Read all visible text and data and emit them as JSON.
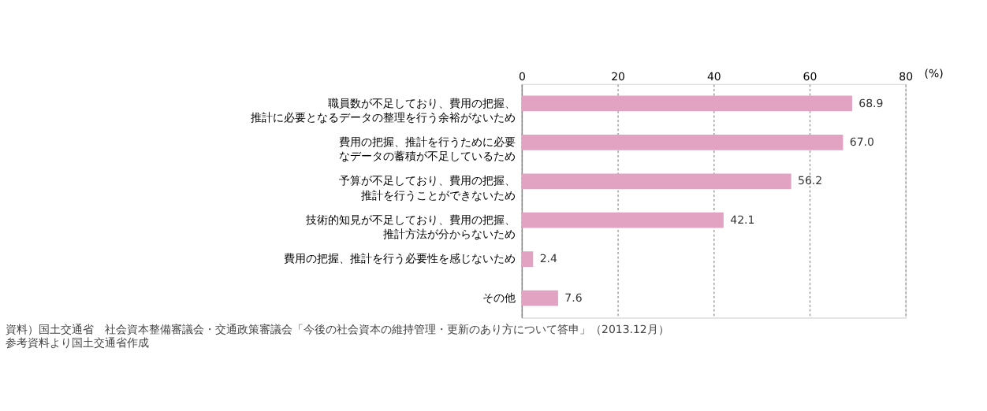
{
  "chart_data": {
    "type": "bar",
    "orientation": "horizontal",
    "categories": [
      "職員数が不足しており、費用の把握、推計に必要となるデータの整理を行う余裕がないため",
      "費用の把握、推計を行うために必要なデータの蓄積が不足しているため",
      "予算が不足しており、費用の把握、推計を行うことができないため",
      "技術的知見が不足しており、費用の把握、推計方法が分からないため",
      "費用の把握、推計を行う必要性を感じないため",
      "その他"
    ],
    "values": [
      68.9,
      67.0,
      56.2,
      42.1,
      2.4,
      7.6
    ],
    "value_labels": [
      "68.9",
      "67.0",
      "56.2",
      "42.1",
      "2.4",
      "7.6"
    ],
    "color": "#e2a3c3",
    "xlabel": "(%)",
    "xlim": [
      0,
      80
    ],
    "xticks": [
      0,
      20,
      40,
      60,
      80
    ],
    "grid": "x",
    "annotations": [
      "資料）国土交通省　社会資本整備審議会・交通政策審議会「今後の社会資本の維持管理・更新のあり方について答申」（2013.12月）参考資料より国土交通省作成"
    ]
  }
}
